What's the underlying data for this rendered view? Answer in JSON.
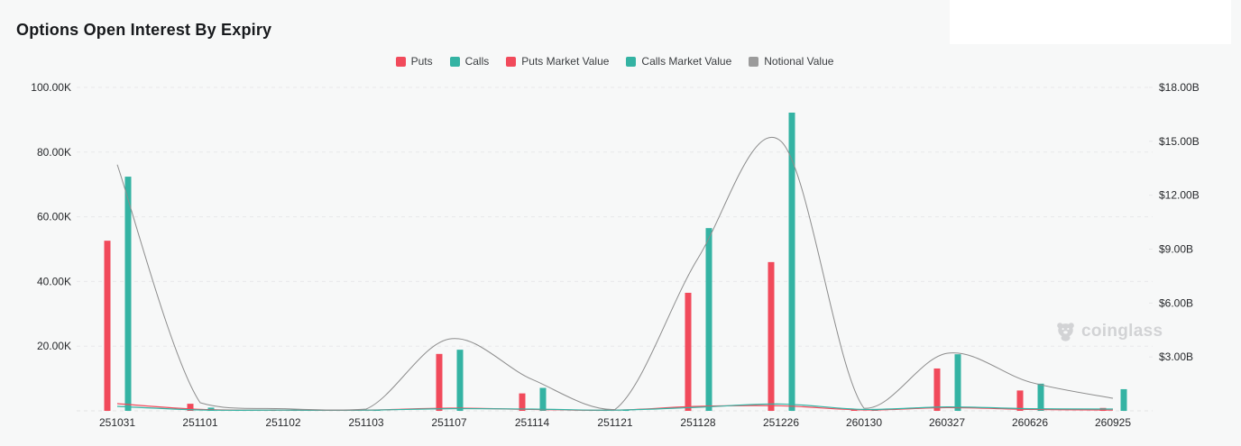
{
  "title": "Options Open Interest By Expiry",
  "watermark": {
    "text": "coinglass"
  },
  "colors": {
    "puts": "#f14a5b",
    "calls": "#34b3a3",
    "notional": "#8c8c8c",
    "grid": "#e8e8ea",
    "baseline": "#e3e3e5",
    "axis_text": "#27292c",
    "background": "#f7f8f8",
    "watermark": "#d2d3d5"
  },
  "legend": {
    "items": [
      {
        "label": "Puts",
        "color": "#f14a5b"
      },
      {
        "label": "Calls",
        "color": "#34b3a3"
      },
      {
        "label": "Puts Market Value",
        "color": "#f14a5b"
      },
      {
        "label": "Calls Market Value",
        "color": "#34b3a3"
      },
      {
        "label": "Notional Value",
        "color": "#9b9b9b"
      }
    ]
  },
  "chart_data": {
    "type": "bar",
    "title": "Options Open Interest By Expiry",
    "categories": [
      "251031",
      "251101",
      "251102",
      "251103",
      "251107",
      "251114",
      "251121",
      "251128",
      "251226",
      "260130",
      "260327",
      "260626",
      "260925"
    ],
    "left_axis": {
      "unit": "contracts (K)",
      "max_k": 100,
      "tick_step_k": 20,
      "tick_labels": [
        "20.00K",
        "40.00K",
        "60.00K",
        "80.00K",
        "100.00K"
      ]
    },
    "right_axis": {
      "unit": "USD (B)",
      "max_b": 18,
      "tick_step_b": 3,
      "tick_labels": [
        "$3.00B",
        "$6.00B",
        "$9.00B",
        "$12.00B",
        "$15.00B",
        "$18.00B"
      ]
    },
    "series": [
      {
        "name": "Puts",
        "type": "bar",
        "axis": "left",
        "color": "#f14a5b",
        "values_k": [
          52.6,
          2.2,
          0.2,
          0.15,
          17.6,
          5.4,
          0.15,
          36.5,
          46.0,
          0.3,
          13.1,
          6.3,
          0.9
        ]
      },
      {
        "name": "Calls",
        "type": "bar",
        "axis": "left",
        "color": "#34b3a3",
        "values_k": [
          72.4,
          1.0,
          0.3,
          0.2,
          18.9,
          7.1,
          0.25,
          56.5,
          92.2,
          0.4,
          17.5,
          8.4,
          6.7
        ]
      },
      {
        "name": "Puts Market Value",
        "type": "line",
        "axis": "right",
        "color": "#f14a5b",
        "values_b": [
          0.4,
          0.08,
          0.04,
          0.04,
          0.15,
          0.08,
          0.04,
          0.25,
          0.28,
          0.05,
          0.18,
          0.08,
          0.04
        ]
      },
      {
        "name": "Calls Market Value",
        "type": "line",
        "axis": "right",
        "color": "#34b3a3",
        "values_b": [
          0.25,
          0.05,
          0.04,
          0.04,
          0.12,
          0.1,
          0.04,
          0.2,
          0.38,
          0.08,
          0.22,
          0.12,
          0.1
        ]
      },
      {
        "name": "Notional Value",
        "type": "line",
        "axis": "right",
        "color": "#8c8c8c",
        "values_b": [
          13.7,
          0.45,
          0.12,
          0.1,
          4.0,
          1.75,
          0.08,
          8.5,
          15.0,
          0.15,
          3.2,
          1.6,
          0.7
        ]
      }
    ],
    "legend_position": "top-center",
    "grid": "horizontal-dashed"
  }
}
